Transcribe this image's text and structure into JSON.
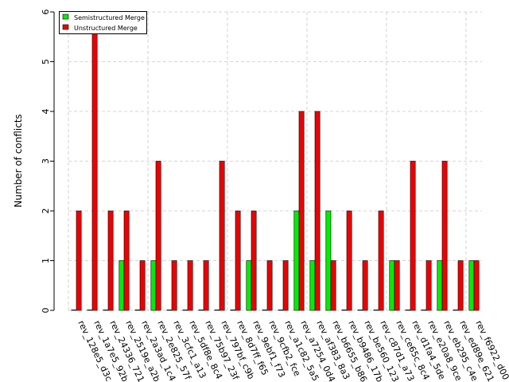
{
  "chart_data": {
    "type": "bar",
    "ylabel": "Number of conflicts",
    "xlabel": "",
    "ylim": [
      0,
      6
    ],
    "yticks": [
      "0",
      "1",
      "2",
      "3",
      "4",
      "5",
      "6"
    ],
    "grid": true,
    "legend_position": "top-left",
    "categories": [
      "rev_128e5_d3c",
      "rev_1a7e5_92b",
      "rev_24336_721",
      "rev_2519e_a2b",
      "rev_2a3ad_1c4",
      "rev_2e825_57f",
      "rev_3cfc1_a13",
      "rev_5df8e_8c4",
      "rev_75b97_23f",
      "rev_797bf_c9b",
      "rev_8d7ff_f65",
      "rev_9ebf1_f73",
      "rev_9cfb2_fce",
      "rev_a1c82_5a5",
      "rev_a7254_0d4",
      "rev_af383_8a3",
      "rev_b6655_b86",
      "rev_b9486_17b",
      "rev_be560_123",
      "rev_c87d1_a73",
      "rev_ce65c_8c4",
      "rev_d1fa4_5de",
      "rev_e20a8_9ce",
      "rev_eb295_c4e",
      "rev_ed89e_621",
      "rev_f6922_d00"
    ],
    "series": [
      {
        "name": "Semistructured Merge",
        "color": "#00ee00",
        "values": [
          0,
          0,
          0,
          1,
          0,
          1,
          0,
          0,
          0,
          0,
          0,
          1,
          0,
          0,
          2,
          1,
          2,
          0,
          0,
          0,
          1,
          0,
          0,
          1,
          0,
          1
        ]
      },
      {
        "name": "Unstructured Merge",
        "color": "#ee0000",
        "values": [
          2,
          6,
          2,
          2,
          1,
          3,
          1,
          1,
          1,
          3,
          2,
          2,
          1,
          1,
          4,
          4,
          1,
          2,
          1,
          2,
          1,
          3,
          1,
          3,
          1,
          1
        ]
      }
    ]
  }
}
